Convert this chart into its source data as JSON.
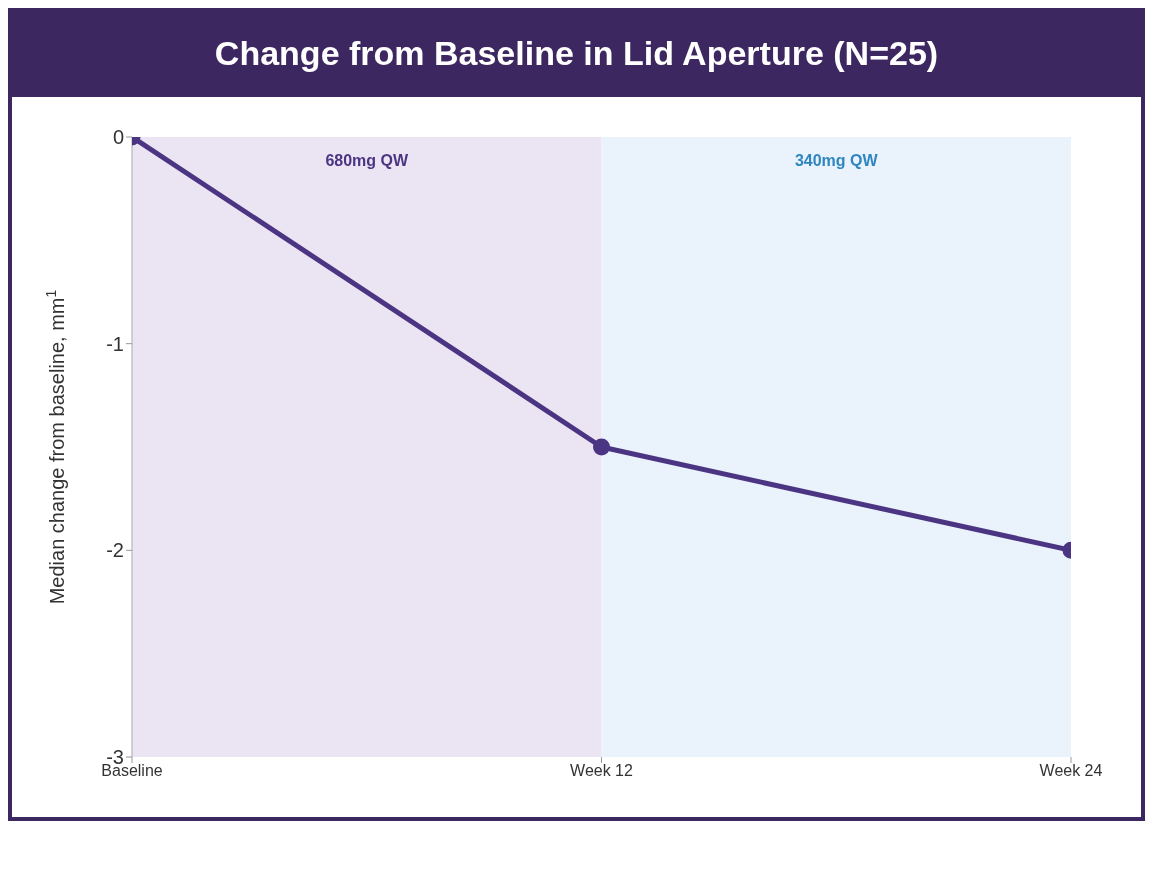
{
  "chart_data": {
    "type": "line",
    "title": "Change from Baseline in Lid Aperture (N=25)",
    "ylabel": "Median change from baseline, mm$^{1}$",
    "categories": [
      "Baseline",
      "Week 12",
      "Week 24"
    ],
    "series": [
      {
        "color": "#4b3583",
        "values": [
          0,
          -1.5,
          -2
        ]
      }
    ],
    "ylim": [
      -3,
      0
    ],
    "yticks": [
      0,
      -1,
      -2,
      -3
    ],
    "bands": [
      {
        "axis": "x",
        "from": "Baseline",
        "to": "Week 12",
        "label": "680mg QW",
        "color": "#ebe5f3"
      },
      {
        "axis": "x",
        "from": "Week 12",
        "to": "Week 24",
        "label": "340mg QW",
        "color": "#eaf2fb"
      }
    ],
    "marker": "circle",
    "line_style": "solid",
    "grid": false
  }
}
